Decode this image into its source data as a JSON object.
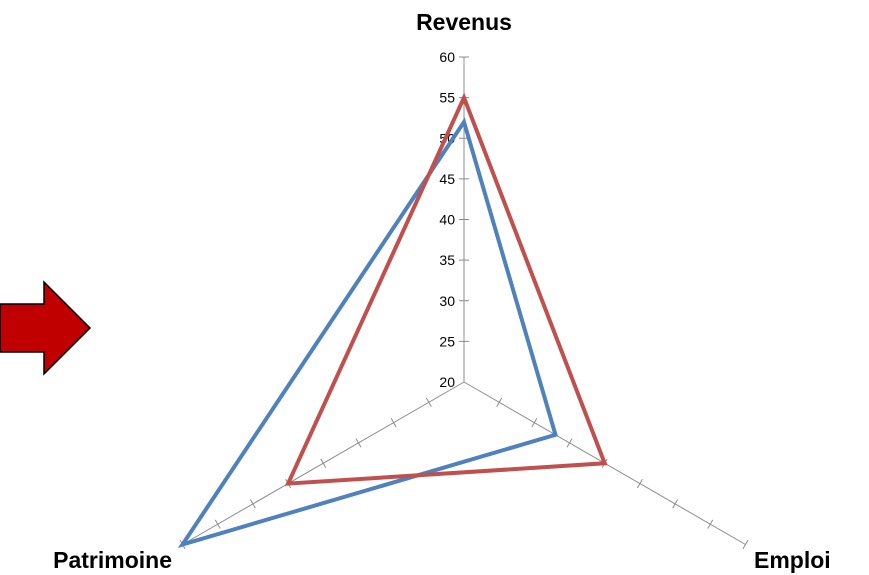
{
  "chart_data": {
    "type": "radar",
    "axes": [
      "Revenus",
      "Emploi",
      "Patrimoine"
    ],
    "rlim": [
      20,
      60
    ],
    "r_ticks": [
      20,
      25,
      30,
      35,
      40,
      45,
      50,
      55,
      60
    ],
    "grid": false,
    "legend": "none",
    "series": [
      {
        "color": "#4f81bd",
        "values": [
          52,
          33,
          60
        ]
      },
      {
        "color": "#c0504d",
        "values": [
          55,
          40,
          45
        ]
      }
    ]
  },
  "decoration": {
    "arrow": {
      "icon": "right-arrow-icon",
      "fill": "#c00000",
      "stroke": "#000000"
    }
  }
}
